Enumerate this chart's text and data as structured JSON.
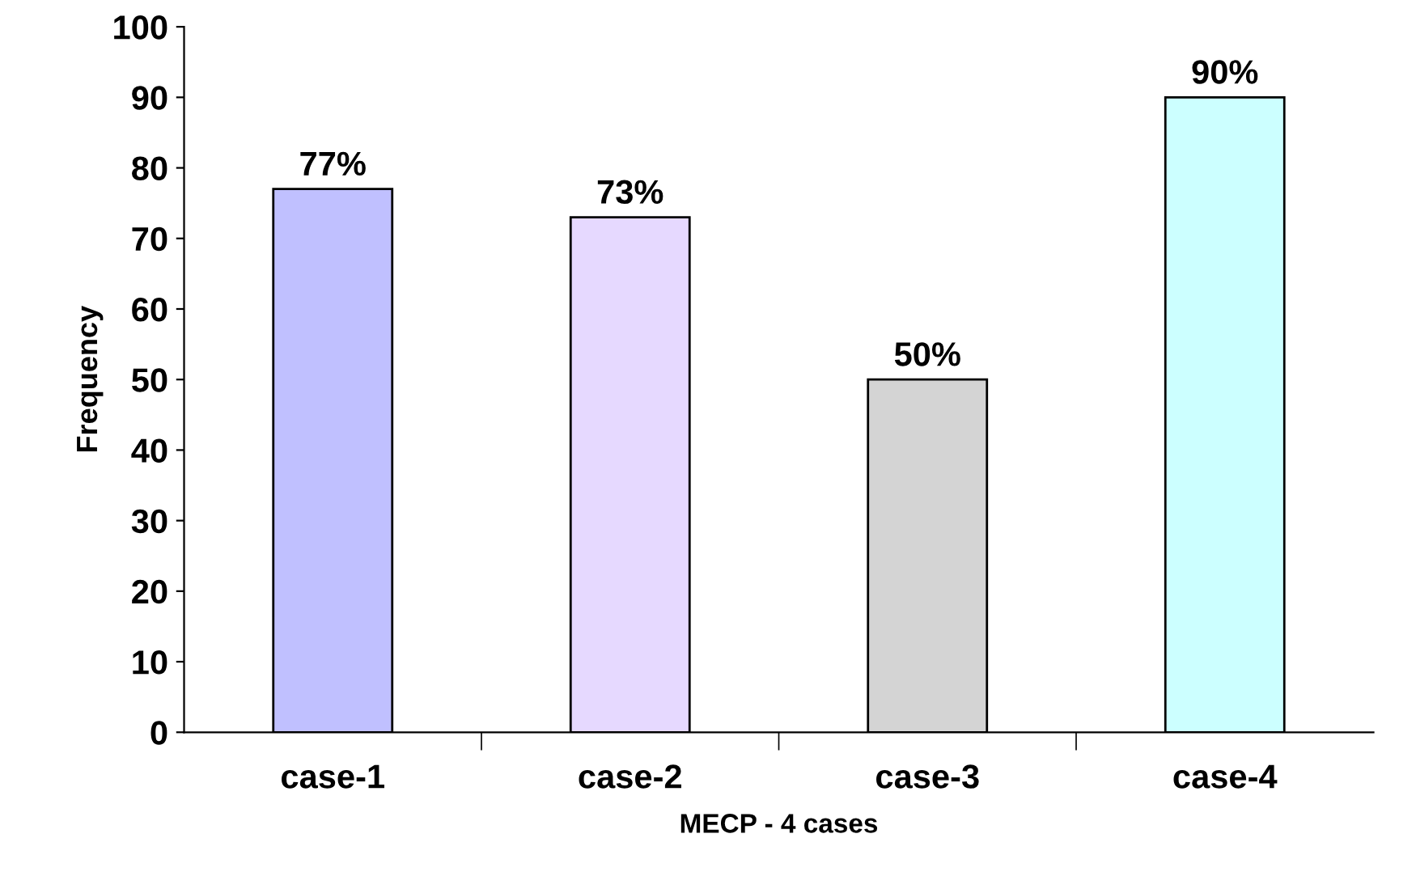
{
  "chart_data": {
    "type": "bar",
    "xlabel": "MECP - 4 cases",
    "ylabel": "Frequency",
    "categories": [
      "case-1",
      "case-2",
      "case-3",
      "case-4"
    ],
    "values": [
      77,
      73,
      50,
      90
    ],
    "colors": [
      "#c0c0ff",
      "#e6d9ff",
      "#d4d4d4",
      "#ccffff"
    ],
    "value_labels": [
      "77%",
      "73%",
      "50%",
      "90%"
    ],
    "ylim": [
      0,
      100
    ],
    "yticks": [
      0,
      10,
      20,
      30,
      40,
      50,
      60,
      70,
      80,
      90,
      100
    ],
    "grid": false,
    "legend": false
  }
}
